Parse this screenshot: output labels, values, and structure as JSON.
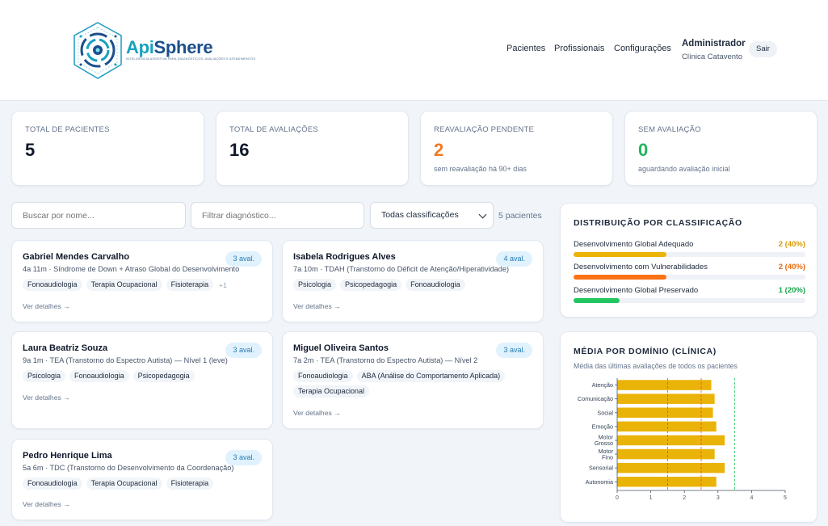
{
  "brand": {
    "name_a": "Api",
    "name_b": "Sphere",
    "tagline": "INTELIGÊNCIA ASSISTIVA PARA DIAGNÓSTICOS, AVALIAÇÕES E ATENDIMENTOS"
  },
  "nav": {
    "items": [
      "Pacientes",
      "Profissionais",
      "Configurações"
    ]
  },
  "user": {
    "name": "Administrador",
    "clinic": "Clínica Catavento",
    "logout": "Sair"
  },
  "stats": [
    {
      "label": "TOTAL DE PACIENTES",
      "value": "5",
      "sub": "",
      "color": "#0f172a"
    },
    {
      "label": "TOTAL DE AVALIAÇÕES",
      "value": "16",
      "sub": "",
      "color": "#0f172a"
    },
    {
      "label": "REAVALIAÇÃO PENDENTE",
      "value": "2",
      "sub": "sem reavaliação há 90+ dias",
      "color": "#f07a22"
    },
    {
      "label": "SEM AVALIAÇÃO",
      "value": "0",
      "sub": "aguardando avaliação inicial",
      "color": "#22b35e"
    }
  ],
  "filters": {
    "search_placeholder": "Buscar por nome...",
    "diagnosis_placeholder": "Filtrar diagnóstico...",
    "classification_selected": "Todas classificações",
    "patient_count": "5 pacientes"
  },
  "patients": [
    {
      "name": "Gabriel Mendes Carvalho",
      "info": "4a 11m · Síndrome de Down + Atraso Global do Desenvolvimento",
      "badge": "3 aval.",
      "tags": [
        "Fonoaudiologia",
        "Terapia Ocupacional",
        "Fisioterapia"
      ],
      "more": "+1",
      "details": "Ver detalhes →"
    },
    {
      "name": "Isabela Rodrigues Alves",
      "info": "7a 10m · TDAH (Transtorno do Déficit de Atenção/Hiperatividade)",
      "badge": "4 aval.",
      "tags": [
        "Psicologia",
        "Psicopedagogia",
        "Fonoaudiologia"
      ],
      "more": "",
      "details": "Ver detalhes →"
    },
    {
      "name": "Laura Beatriz Souza",
      "info": "9a 1m · TEA (Transtorno do Espectro Autista) — Nível 1 (leve)",
      "badge": "3 aval.",
      "tags": [
        "Psicologia",
        "Fonoaudiologia",
        "Psicopedagogia"
      ],
      "more": "",
      "details": "Ver detalhes →"
    },
    {
      "name": "Miguel Oliveira Santos",
      "info": "7a 2m · TEA (Transtorno do Espectro Autista) — Nível 2",
      "badge": "3 aval.",
      "tags": [
        "Fonoaudiologia",
        "ABA (Análise do Comportamento Aplicada)",
        "Terapia Ocupacional"
      ],
      "more": "",
      "details": "Ver detalhes →"
    },
    {
      "name": "Pedro Henrique Lima",
      "info": "5a 6m · TDC (Transtorno do Desenvolvimento da Coordenação)",
      "badge": "3 aval.",
      "tags": [
        "Fonoaudiologia",
        "Terapia Ocupacional",
        "Fisioterapia"
      ],
      "more": "",
      "details": "Ver detalhes →"
    }
  ],
  "distribution": {
    "title": "DISTRIBUIÇÃO POR CLASSIFICAÇÃO",
    "rows": [
      {
        "label": "Desenvolvimento Global Adequado",
        "value": "2 (40%)",
        "fraction": 0.4,
        "color": "#eab308"
      },
      {
        "label": "Desenvolvimento com Vulnerabilidades",
        "value": "2 (40%)",
        "fraction": 0.4,
        "color": "#f97316"
      },
      {
        "label": "Desenvolvimento Global Preservado",
        "value": "1 (20%)",
        "fraction": 0.2,
        "color": "#22c55e"
      }
    ]
  },
  "domain_chart": {
    "title": "MÉDIA POR DOMÍNIO (CLÍNICA)",
    "subtitle": "Média das últimas avaliações de todos os pacientes"
  },
  "chart_data": {
    "type": "bar",
    "orientation": "horizontal",
    "title": "MÉDIA POR DOMÍNIO (CLÍNICA)",
    "subtitle": "Média das últimas avaliações de todos os pacientes",
    "categories": [
      [
        "Atenção"
      ],
      [
        "Comunicação"
      ],
      [
        "Social"
      ],
      [
        "Emoção"
      ],
      [
        "Motor",
        "Grosso"
      ],
      [
        "Motor",
        "Fino"
      ],
      [
        "Sensorial"
      ],
      [
        "Autonomia"
      ]
    ],
    "values": [
      2.8,
      2.9,
      2.85,
      2.95,
      3.2,
      2.9,
      3.2,
      2.95
    ],
    "xlim": [
      0,
      5
    ],
    "xticks": [
      0,
      1,
      2,
      3,
      4,
      5
    ],
    "reference_lines": [
      {
        "value": 1.5,
        "color": "#ef4444"
      },
      {
        "value": 2.5,
        "color": "#ef4444"
      },
      {
        "value": 3.5,
        "color": "#22c55e"
      }
    ],
    "bar_color": "#eab308",
    "grid": false
  }
}
